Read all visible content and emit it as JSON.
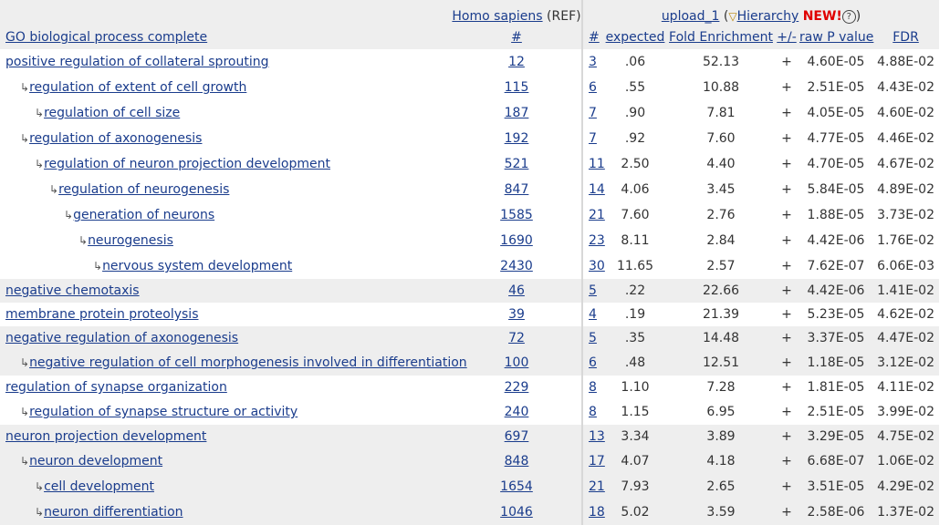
{
  "header": {
    "organism_link": "Homo sapiens",
    "organism_suffix": " (REF)",
    "upload_link": "upload_1",
    "upload_paren_open": " (",
    "hierarchy_label": "Hierarchy",
    "new_label": "NEW!",
    "help_glyph": "?",
    "paren_close": ")",
    "columns": {
      "term": "GO biological process complete",
      "ref_count": "#",
      "count": "#",
      "expected": "expected",
      "fold": "Fold Enrichment",
      "plusminus": "+/-",
      "raw_p": "raw P value",
      "fdr": "FDR"
    }
  },
  "rows": [
    {
      "indent": 0,
      "term": "positive regulation of collateral sprouting",
      "ref": "12",
      "count": "3",
      "expected": ".06",
      "fold": "52.13",
      "pm": "+",
      "p": "4.60E-05",
      "fdr": "4.88E-02",
      "shade": false
    },
    {
      "indent": 1,
      "term": "regulation of extent of cell growth",
      "ref": "115",
      "count": "6",
      "expected": ".55",
      "fold": "10.88",
      "pm": "+",
      "p": "2.51E-05",
      "fdr": "4.43E-02",
      "shade": false
    },
    {
      "indent": 2,
      "term": "regulation of cell size",
      "ref": "187",
      "count": "7",
      "expected": ".90",
      "fold": "7.81",
      "pm": "+",
      "p": "4.05E-05",
      "fdr": "4.60E-02",
      "shade": false
    },
    {
      "indent": 1,
      "term": "regulation of axonogenesis",
      "ref": "192",
      "count": "7",
      "expected": ".92",
      "fold": "7.60",
      "pm": "+",
      "p": "4.77E-05",
      "fdr": "4.46E-02",
      "shade": false
    },
    {
      "indent": 2,
      "term": "regulation of neuron projection development",
      "ref": "521",
      "count": "11",
      "expected": "2.50",
      "fold": "4.40",
      "pm": "+",
      "p": "4.70E-05",
      "fdr": "4.67E-02",
      "shade": false
    },
    {
      "indent": 3,
      "term": "regulation of neurogenesis",
      "ref": "847",
      "count": "14",
      "expected": "4.06",
      "fold": "3.45",
      "pm": "+",
      "p": "5.84E-05",
      "fdr": "4.89E-02",
      "shade": false
    },
    {
      "indent": 4,
      "term": "generation of neurons",
      "ref": "1585",
      "count": "21",
      "expected": "7.60",
      "fold": "2.76",
      "pm": "+",
      "p": "1.88E-05",
      "fdr": "3.73E-02",
      "shade": false
    },
    {
      "indent": 5,
      "term": "neurogenesis",
      "ref": "1690",
      "count": "23",
      "expected": "8.11",
      "fold": "2.84",
      "pm": "+",
      "p": "4.42E-06",
      "fdr": "1.76E-02",
      "shade": false
    },
    {
      "indent": 6,
      "term": "nervous system development",
      "ref": "2430",
      "count": "30",
      "expected": "11.65",
      "fold": "2.57",
      "pm": "+",
      "p": "7.62E-07",
      "fdr": "6.06E-03",
      "shade": false
    },
    {
      "indent": 0,
      "term": "negative chemotaxis",
      "ref": "46",
      "count": "5",
      "expected": ".22",
      "fold": "22.66",
      "pm": "+",
      "p": "4.42E-06",
      "fdr": "1.41E-02",
      "shade": true
    },
    {
      "indent": 0,
      "term": "membrane protein proteolysis",
      "ref": "39",
      "count": "4",
      "expected": ".19",
      "fold": "21.39",
      "pm": "+",
      "p": "5.23E-05",
      "fdr": "4.62E-02",
      "shade": false
    },
    {
      "indent": 0,
      "term": "negative regulation of axonogenesis",
      "ref": "72",
      "count": "5",
      "expected": ".35",
      "fold": "14.48",
      "pm": "+",
      "p": "3.37E-05",
      "fdr": "4.47E-02",
      "shade": true
    },
    {
      "indent": 1,
      "term": "negative regulation of cell morphogenesis involved in differentiation",
      "ref": "100",
      "count": "6",
      "expected": ".48",
      "fold": "12.51",
      "pm": "+",
      "p": "1.18E-05",
      "fdr": "3.12E-02",
      "shade": true
    },
    {
      "indent": 0,
      "term": "regulation of synapse organization",
      "ref": "229",
      "count": "8",
      "expected": "1.10",
      "fold": "7.28",
      "pm": "+",
      "p": "1.81E-05",
      "fdr": "4.11E-02",
      "shade": false
    },
    {
      "indent": 1,
      "term": "regulation of synapse structure or activity",
      "ref": "240",
      "count": "8",
      "expected": "1.15",
      "fold": "6.95",
      "pm": "+",
      "p": "2.51E-05",
      "fdr": "3.99E-02",
      "shade": false
    },
    {
      "indent": 0,
      "term": "neuron projection development",
      "ref": "697",
      "count": "13",
      "expected": "3.34",
      "fold": "3.89",
      "pm": "+",
      "p": "3.29E-05",
      "fdr": "4.75E-02",
      "shade": true
    },
    {
      "indent": 1,
      "term": "neuron development",
      "ref": "848",
      "count": "17",
      "expected": "4.07",
      "fold": "4.18",
      "pm": "+",
      "p": "6.68E-07",
      "fdr": "1.06E-02",
      "shade": true
    },
    {
      "indent": 2,
      "term": "cell development",
      "ref": "1654",
      "count": "21",
      "expected": "7.93",
      "fold": "2.65",
      "pm": "+",
      "p": "3.51E-05",
      "fdr": "4.29E-02",
      "shade": true
    },
    {
      "indent": 2,
      "term": "neuron differentiation",
      "ref": "1046",
      "count": "18",
      "expected": "5.02",
      "fold": "3.59",
      "pm": "+",
      "p": "2.58E-06",
      "fdr": "1.37E-02",
      "shade": true
    }
  ]
}
